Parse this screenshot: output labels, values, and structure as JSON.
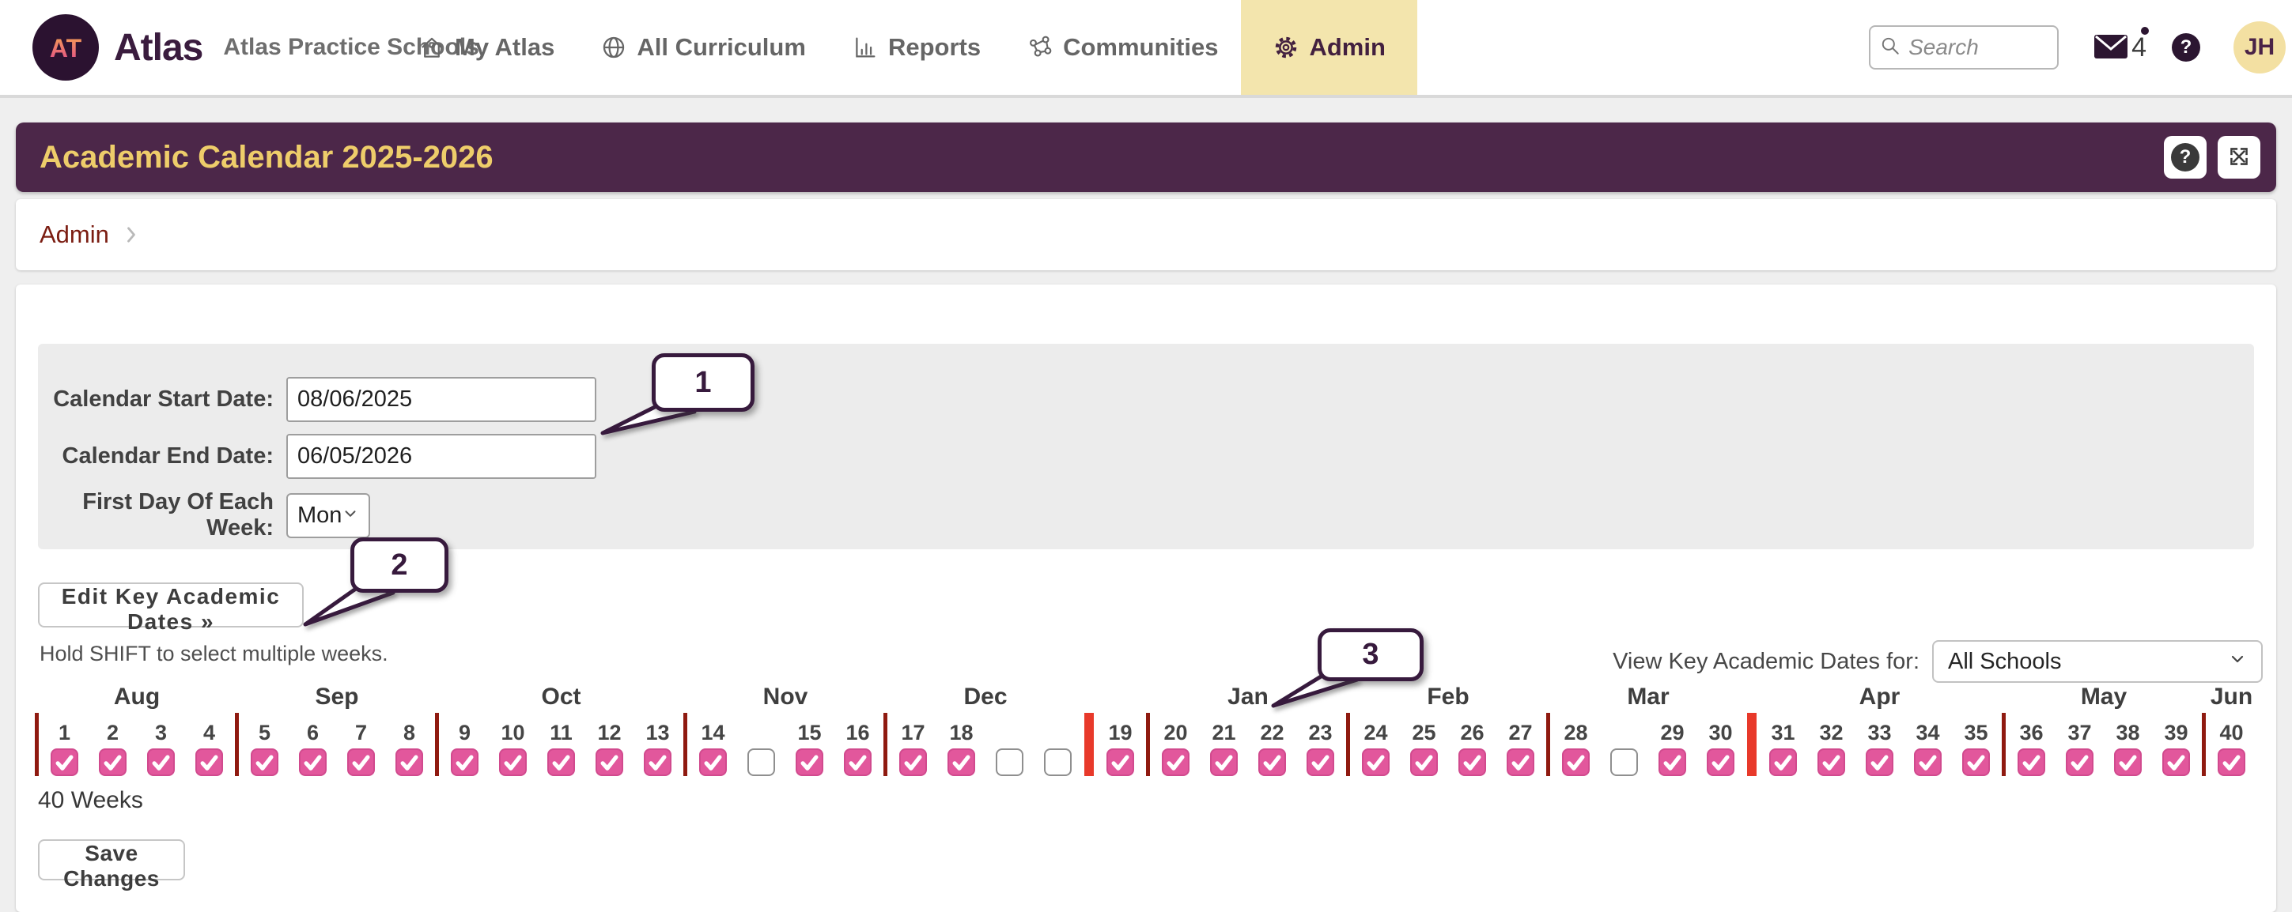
{
  "nav": {
    "brand": {
      "logo_text": "AT",
      "name": "Atlas",
      "org": "Atlas Practice Schools"
    },
    "items": [
      {
        "label": "My Atlas"
      },
      {
        "label": "All Curriculum"
      },
      {
        "label": "Reports"
      },
      {
        "label": "Communities"
      },
      {
        "label": "Admin"
      }
    ],
    "search_placeholder": "Search",
    "message_count": "4",
    "help_glyph": "?",
    "avatar_initials": "JH"
  },
  "header": {
    "title": "Academic Calendar 2025-2026",
    "help_glyph": "?"
  },
  "breadcrumb": {
    "admin": "Admin"
  },
  "form": {
    "start_label": "Calendar Start Date:",
    "start_value": "08/06/2025",
    "end_label": "Calendar End Date:",
    "end_value": "06/05/2026",
    "first_day_label": "First Day Of Each Week:",
    "first_day_value": "Mon"
  },
  "actions": {
    "edit_key_dates": "Edit Key Academic Dates »",
    "save": "Save Changes"
  },
  "hint": "Hold SHIFT to select multiple weeks.",
  "view_for": {
    "label": "View Key Academic Dates for:",
    "value": "All Schools"
  },
  "weeks_summary": "40 Weeks",
  "callouts": [
    "1",
    "2",
    "3"
  ],
  "calendar_strip": {
    "groups": [
      {
        "month": "Aug",
        "divider_before": "maroon",
        "weeks": [
          {
            "n": "1",
            "checked": true
          },
          {
            "n": "2",
            "checked": true
          },
          {
            "n": "3",
            "checked": true
          },
          {
            "n": "4",
            "checked": true
          }
        ]
      },
      {
        "month": "Sep",
        "divider_before": "maroon",
        "weeks": [
          {
            "n": "5",
            "checked": true
          },
          {
            "n": "6",
            "checked": true
          },
          {
            "n": "7",
            "checked": true
          },
          {
            "n": "8",
            "checked": true
          }
        ]
      },
      {
        "month": "Oct",
        "divider_before": "maroon",
        "weeks": [
          {
            "n": "9",
            "checked": true
          },
          {
            "n": "10",
            "checked": true
          },
          {
            "n": "11",
            "checked": true
          },
          {
            "n": "12",
            "checked": true
          },
          {
            "n": "13",
            "checked": true
          }
        ]
      },
      {
        "month": "Nov",
        "divider_before": "maroon",
        "weeks": [
          {
            "n": "14",
            "checked": true
          },
          {
            "n": "",
            "checked": false
          },
          {
            "n": "15",
            "checked": true
          },
          {
            "n": "16",
            "checked": true
          }
        ]
      },
      {
        "month": "Dec",
        "divider_before": "maroon",
        "weeks": [
          {
            "n": "17",
            "checked": true
          },
          {
            "n": "18",
            "checked": true
          },
          {
            "n": "",
            "checked": false
          },
          {
            "n": "",
            "checked": false
          }
        ]
      },
      {
        "month": "",
        "divider_before": "red",
        "weeks": [
          {
            "n": "19",
            "checked": true
          }
        ]
      },
      {
        "month": "Jan",
        "divider_before": "maroon",
        "weeks": [
          {
            "n": "20",
            "checked": true
          },
          {
            "n": "21",
            "checked": true
          },
          {
            "n": "22",
            "checked": true
          },
          {
            "n": "23",
            "checked": true
          }
        ]
      },
      {
        "month": "Feb",
        "divider_before": "maroon",
        "weeks": [
          {
            "n": "24",
            "checked": true
          },
          {
            "n": "25",
            "checked": true
          },
          {
            "n": "26",
            "checked": true
          },
          {
            "n": "27",
            "checked": true
          }
        ]
      },
      {
        "month": "Mar",
        "divider_before": "maroon",
        "weeks": [
          {
            "n": "28",
            "checked": true
          },
          {
            "n": "",
            "checked": false
          },
          {
            "n": "29",
            "checked": true
          },
          {
            "n": "30",
            "checked": true
          }
        ]
      },
      {
        "month": "Apr",
        "divider_before": "red",
        "weeks": [
          {
            "n": "31",
            "checked": true
          },
          {
            "n": "32",
            "checked": true
          },
          {
            "n": "33",
            "checked": true
          },
          {
            "n": "34",
            "checked": true
          },
          {
            "n": "35",
            "checked": true
          }
        ]
      },
      {
        "month": "May",
        "divider_before": "maroon",
        "weeks": [
          {
            "n": "36",
            "checked": true
          },
          {
            "n": "37",
            "checked": true
          },
          {
            "n": "38",
            "checked": true
          },
          {
            "n": "39",
            "checked": true
          }
        ]
      },
      {
        "month": "Jun",
        "divider_before": "maroon",
        "weeks": [
          {
            "n": "40",
            "checked": true
          }
        ]
      }
    ]
  },
  "colors": {
    "brand_purple": "#4c2749",
    "title_yellow": "#eecd6a",
    "active_tab_yellow": "#f3e5ad",
    "breadcrumb_red": "#7b1d12",
    "checkbox_pink": "#e2579c",
    "month_divider_maroon": "#8f1a10",
    "key_date_red": "#e8392a",
    "callout_purple": "#371a3d"
  }
}
